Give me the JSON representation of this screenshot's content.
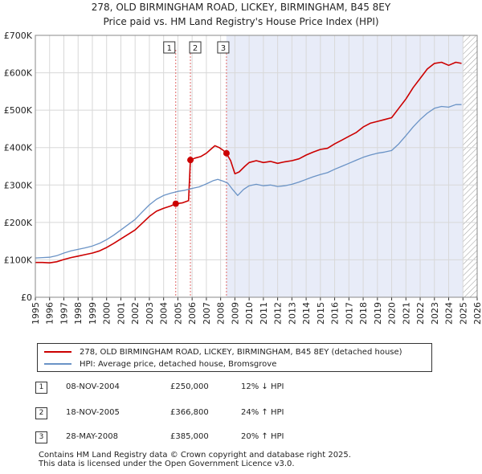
{
  "title_line1": "278, OLD BIRMINGHAM ROAD, LICKEY, BIRMINGHAM, B45 8EY",
  "title_line2": "Price paid vs. HM Land Registry's House Price Index (HPI)",
  "chart_data": {
    "type": "line",
    "title": "278, OLD BIRMINGHAM ROAD, LICKEY, BIRMINGHAM, B45 8EY",
    "subtitle": "Price paid vs. HM Land Registry's House Price Index (HPI)",
    "xlim": [
      1995,
      2026
    ],
    "ylim": [
      0,
      700000
    ],
    "y_ticks": [
      {
        "value": 0,
        "label": "£0"
      },
      {
        "value": 100000,
        "label": "£100K"
      },
      {
        "value": 200000,
        "label": "£200K"
      },
      {
        "value": 300000,
        "label": "£300K"
      },
      {
        "value": 400000,
        "label": "£400K"
      },
      {
        "value": 500000,
        "label": "£500K"
      },
      {
        "value": 600000,
        "label": "£600K"
      },
      {
        "value": 700000,
        "label": "£700K"
      }
    ],
    "x_ticks": [
      "1995",
      "1996",
      "1997",
      "1998",
      "1999",
      "2000",
      "2001",
      "2002",
      "2003",
      "2004",
      "2005",
      "2006",
      "2007",
      "2008",
      "2009",
      "2010",
      "2011",
      "2012",
      "2013",
      "2014",
      "2015",
      "2016",
      "2017",
      "2018",
      "2019",
      "2020",
      "2021",
      "2022",
      "2023",
      "2024",
      "2025",
      "2026"
    ],
    "shaded_region": {
      "from": 2008.4,
      "to": 2025.0
    },
    "hatched_region": {
      "from": 2025.0,
      "to": 2026
    },
    "series": [
      {
        "name": "278, OLD BIRMINGHAM ROAD, LICKEY, BIRMINGHAM, B45 8EY (detached house)",
        "color": "#cc0000",
        "points": [
          [
            1995.0,
            93000
          ],
          [
            1995.5,
            93000
          ],
          [
            1996.0,
            92000
          ],
          [
            1996.5,
            95000
          ],
          [
            1997.0,
            101000
          ],
          [
            1997.5,
            106000
          ],
          [
            1998.0,
            110000
          ],
          [
            1998.5,
            114000
          ],
          [
            1999.0,
            118000
          ],
          [
            1999.5,
            124000
          ],
          [
            2000.0,
            133000
          ],
          [
            2000.5,
            144000
          ],
          [
            2001.0,
            156000
          ],
          [
            2001.5,
            168000
          ],
          [
            2002.0,
            180000
          ],
          [
            2002.5,
            198000
          ],
          [
            2003.0,
            216000
          ],
          [
            2003.5,
            230000
          ],
          [
            2004.0,
            238000
          ],
          [
            2004.5,
            244000
          ],
          [
            2004.85,
            250000
          ],
          [
            2005.3,
            252000
          ],
          [
            2005.75,
            258000
          ],
          [
            2005.88,
            366800
          ],
          [
            2006.2,
            372000
          ],
          [
            2006.6,
            376000
          ],
          [
            2007.0,
            385000
          ],
          [
            2007.3,
            395000
          ],
          [
            2007.6,
            405000
          ],
          [
            2007.9,
            400000
          ],
          [
            2008.2,
            392000
          ],
          [
            2008.4,
            385000
          ],
          [
            2008.7,
            365000
          ],
          [
            2009.0,
            330000
          ],
          [
            2009.3,
            335000
          ],
          [
            2009.7,
            350000
          ],
          [
            2010.0,
            360000
          ],
          [
            2010.5,
            365000
          ],
          [
            2011.0,
            360000
          ],
          [
            2011.5,
            363000
          ],
          [
            2012.0,
            358000
          ],
          [
            2012.5,
            362000
          ],
          [
            2013.0,
            365000
          ],
          [
            2013.5,
            370000
          ],
          [
            2014.0,
            380000
          ],
          [
            2014.5,
            388000
          ],
          [
            2015.0,
            395000
          ],
          [
            2015.5,
            398000
          ],
          [
            2016.0,
            410000
          ],
          [
            2016.5,
            420000
          ],
          [
            2017.0,
            430000
          ],
          [
            2017.5,
            440000
          ],
          [
            2018.0,
            455000
          ],
          [
            2018.5,
            465000
          ],
          [
            2019.0,
            470000
          ],
          [
            2019.5,
            475000
          ],
          [
            2020.0,
            480000
          ],
          [
            2020.5,
            505000
          ],
          [
            2021.0,
            530000
          ],
          [
            2021.5,
            560000
          ],
          [
            2022.0,
            585000
          ],
          [
            2022.5,
            610000
          ],
          [
            2023.0,
            625000
          ],
          [
            2023.5,
            628000
          ],
          [
            2024.0,
            620000
          ],
          [
            2024.5,
            628000
          ],
          [
            2024.9,
            625000
          ]
        ]
      },
      {
        "name": "HPI: Average price, detached house, Bromsgrove",
        "color": "#6a93c6",
        "points": [
          [
            1995.0,
            105000
          ],
          [
            1995.5,
            106000
          ],
          [
            1996.0,
            107000
          ],
          [
            1996.5,
            111000
          ],
          [
            1997.0,
            118000
          ],
          [
            1997.5,
            124000
          ],
          [
            1998.0,
            128000
          ],
          [
            1998.5,
            132000
          ],
          [
            1999.0,
            137000
          ],
          [
            1999.5,
            144000
          ],
          [
            2000.0,
            154000
          ],
          [
            2000.5,
            166000
          ],
          [
            2001.0,
            180000
          ],
          [
            2001.5,
            194000
          ],
          [
            2002.0,
            208000
          ],
          [
            2002.5,
            228000
          ],
          [
            2003.0,
            247000
          ],
          [
            2003.5,
            262000
          ],
          [
            2004.0,
            272000
          ],
          [
            2004.5,
            278000
          ],
          [
            2005.0,
            283000
          ],
          [
            2005.5,
            286000
          ],
          [
            2006.0,
            291000
          ],
          [
            2006.5,
            295000
          ],
          [
            2007.0,
            303000
          ],
          [
            2007.5,
            312000
          ],
          [
            2007.8,
            315000
          ],
          [
            2008.2,
            310000
          ],
          [
            2008.5,
            305000
          ],
          [
            2008.8,
            290000
          ],
          [
            2009.2,
            272000
          ],
          [
            2009.6,
            288000
          ],
          [
            2010.0,
            298000
          ],
          [
            2010.5,
            302000
          ],
          [
            2011.0,
            298000
          ],
          [
            2011.5,
            300000
          ],
          [
            2012.0,
            296000
          ],
          [
            2012.5,
            298000
          ],
          [
            2013.0,
            302000
          ],
          [
            2013.5,
            308000
          ],
          [
            2014.0,
            315000
          ],
          [
            2014.5,
            322000
          ],
          [
            2015.0,
            328000
          ],
          [
            2015.5,
            333000
          ],
          [
            2016.0,
            342000
          ],
          [
            2016.5,
            350000
          ],
          [
            2017.0,
            358000
          ],
          [
            2017.5,
            366000
          ],
          [
            2018.0,
            374000
          ],
          [
            2018.5,
            380000
          ],
          [
            2019.0,
            385000
          ],
          [
            2019.5,
            388000
          ],
          [
            2020.0,
            392000
          ],
          [
            2020.5,
            410000
          ],
          [
            2021.0,
            432000
          ],
          [
            2021.5,
            455000
          ],
          [
            2022.0,
            475000
          ],
          [
            2022.5,
            492000
          ],
          [
            2023.0,
            505000
          ],
          [
            2023.5,
            510000
          ],
          [
            2024.0,
            508000
          ],
          [
            2024.5,
            515000
          ],
          [
            2024.9,
            515000
          ]
        ]
      }
    ],
    "sale_points": [
      {
        "id": "1",
        "x": 2004.85,
        "value": 250000
      },
      {
        "id": "2",
        "x": 2005.88,
        "value": 366800
      },
      {
        "id": "3",
        "x": 2008.41,
        "value": 385000
      }
    ]
  },
  "legend": {
    "property_label": "278, OLD BIRMINGHAM ROAD, LICKEY, BIRMINGHAM, B45 8EY (detached house)",
    "hpi_label": "HPI: Average price, detached house, Bromsgrove"
  },
  "transactions": [
    {
      "num": "1",
      "date": "08-NOV-2004",
      "price": "£250,000",
      "hpi": "12% ↓ HPI"
    },
    {
      "num": "2",
      "date": "18-NOV-2005",
      "price": "£366,800",
      "hpi": "24% ↑ HPI"
    },
    {
      "num": "3",
      "date": "28-MAY-2008",
      "price": "£385,000",
      "hpi": "20% ↑ HPI"
    }
  ],
  "footer": {
    "line1": "Contains HM Land Registry data © Crown copyright and database right 2025.",
    "line2": "This data is licensed under the Open Government Licence v3.0."
  }
}
